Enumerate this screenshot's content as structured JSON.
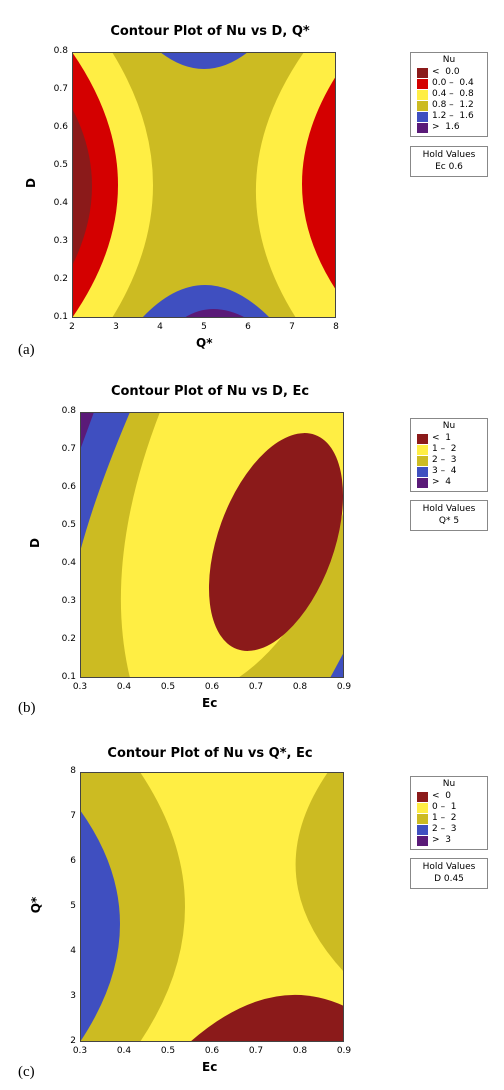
{
  "chart_data": [
    {
      "type": "contour",
      "panel_label": "(a)",
      "title": "Contour Plot of Nu vs D, Q*",
      "xlabel": "Q*",
      "ylabel": "D",
      "xlim": [
        2,
        8
      ],
      "ylim": [
        0.1,
        0.8
      ],
      "xticks": [
        "2",
        "3",
        "4",
        "5",
        "6",
        "7",
        "8"
      ],
      "yticks": [
        "0.1",
        "0.2",
        "0.3",
        "0.4",
        "0.5",
        "0.6",
        "0.7",
        "0.8"
      ],
      "legend_title": "Nu",
      "legend": [
        {
          "label": "<  0.0",
          "color": "#8b1a1a"
        },
        {
          "label": "0.0 –  0.4",
          "color": "#d40000"
        },
        {
          "label": "0.4 –  0.8",
          "color": "#ffee44"
        },
        {
          "label": "0.8 –  1.2",
          "color": "#ccbb22"
        },
        {
          "label": "1.2 –  1.6",
          "color": "#3f4fc0"
        },
        {
          "label": ">  1.6",
          "color": "#5a1a78"
        }
      ],
      "hold_title": "Hold Values",
      "hold_value": "Ec  0.6"
    },
    {
      "type": "contour",
      "panel_label": "(b)",
      "title": "Contour Plot of Nu vs D, Ec",
      "xlabel": "Ec",
      "ylabel": "D",
      "xlim": [
        0.3,
        0.9
      ],
      "ylim": [
        0.1,
        0.8
      ],
      "xticks": [
        "0.3",
        "0.4",
        "0.5",
        "0.6",
        "0.7",
        "0.8",
        "0.9"
      ],
      "yticks": [
        "0.1",
        "0.2",
        "0.3",
        "0.4",
        "0.5",
        "0.6",
        "0.7",
        "0.8"
      ],
      "legend_title": "Nu",
      "legend": [
        {
          "label": "<  1",
          "color": "#8b1a1a"
        },
        {
          "label": "1 –  2",
          "color": "#ffee44"
        },
        {
          "label": "2 –  3",
          "color": "#ccbb22"
        },
        {
          "label": "3 –  4",
          "color": "#3f4fc0"
        },
        {
          "label": ">  4",
          "color": "#5a1a78"
        }
      ],
      "hold_title": "Hold Values",
      "hold_value": "Q*  5"
    },
    {
      "type": "contour",
      "panel_label": "(c)",
      "title": "Contour Plot of Nu vs Q*, Ec",
      "xlabel": "Ec",
      "ylabel": "Q*",
      "xlim": [
        0.3,
        0.9
      ],
      "ylim": [
        2,
        8
      ],
      "xticks": [
        "0.3",
        "0.4",
        "0.5",
        "0.6",
        "0.7",
        "0.8",
        "0.9"
      ],
      "yticks": [
        "2",
        "3",
        "4",
        "5",
        "6",
        "7",
        "8"
      ],
      "legend_title": "Nu",
      "legend": [
        {
          "label": "<  0",
          "color": "#8b1a1a"
        },
        {
          "label": "0 –  1",
          "color": "#ffee44"
        },
        {
          "label": "1 –  2",
          "color": "#ccbb22"
        },
        {
          "label": "2 –  3",
          "color": "#3f4fc0"
        },
        {
          "label": ">  3",
          "color": "#5a1a78"
        }
      ],
      "hold_title": "Hold Values",
      "hold_value": "D  0.45"
    }
  ]
}
